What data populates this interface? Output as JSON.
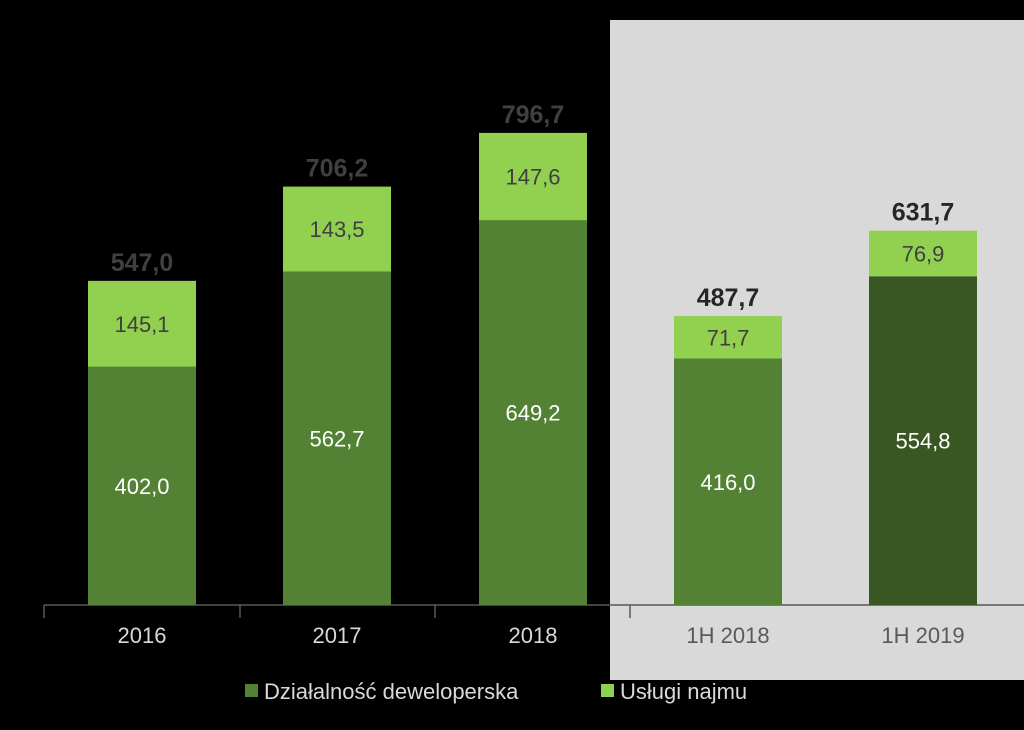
{
  "colors": {
    "background": "#000000",
    "highlight_panel": "#d9d9d9",
    "development": "#548235",
    "development_highlight": "#385723",
    "rental": "#92d050",
    "axis": "#595959",
    "total_label_dark_bg": "#404040",
    "total_label_light_bg": "#262626",
    "tick_label_dark_bg": "#d9d9d9",
    "tick_label_light_bg": "#595959",
    "segment_label_dark": "#ffffff",
    "segment_label_light": "#404040",
    "legend_text": "#d9d9d9"
  },
  "chart_data": {
    "type": "bar",
    "stacked": true,
    "categories": [
      "2016",
      "2017",
      "2018",
      "1H 2018",
      "1H 2019"
    ],
    "series": [
      {
        "name": "Działalność deweloperska",
        "values": [
          402.0,
          562.7,
          649.2,
          416.0,
          554.8
        ],
        "labels": [
          "402,0",
          "562,7",
          "649,2",
          "416,0",
          "554,8"
        ]
      },
      {
        "name": "Usługi najmu",
        "values": [
          145.1,
          143.5,
          147.6,
          71.7,
          76.9
        ],
        "labels": [
          "145,1",
          "143,5",
          "147,6",
          "71,7",
          "76,9"
        ]
      }
    ],
    "totals": [
      547.0,
      706.2,
      796.7,
      487.7,
      631.7
    ],
    "total_labels": [
      "547,0",
      "706,2",
      "796,7",
      "487,7",
      "631,7"
    ],
    "highlighted_categories": [
      "1H 2018",
      "1H 2019"
    ],
    "ylim": [
      0,
      850
    ],
    "legend_position": "bottom"
  }
}
